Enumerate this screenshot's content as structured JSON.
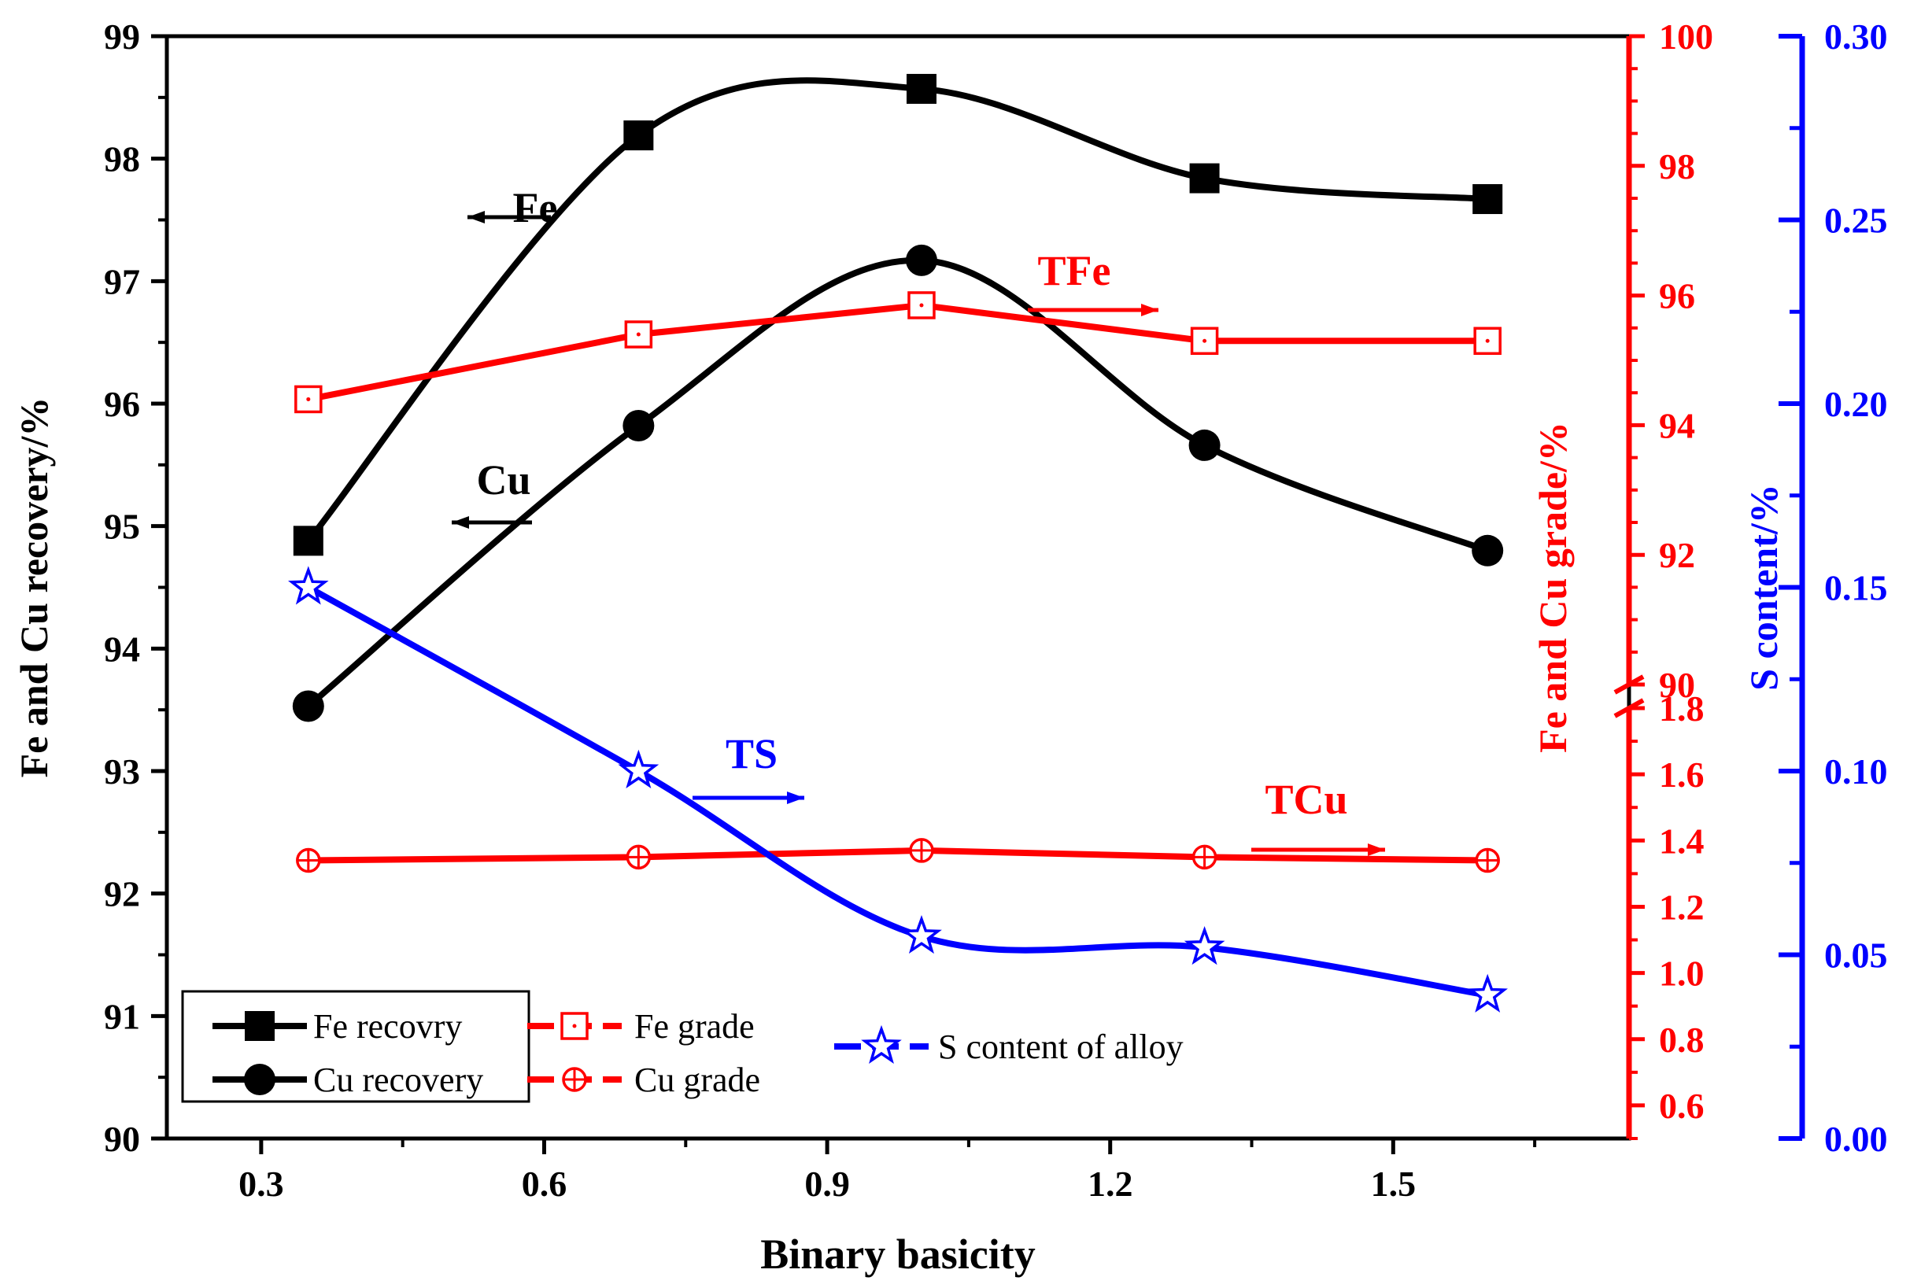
{
  "chart_data": {
    "type": "line",
    "title": "",
    "xlabel": "Binary basicity",
    "xlim": [
      0.2,
      1.75
    ],
    "xticks": [
      "0.3",
      "0.6",
      "0.9",
      "1.2",
      "1.5"
    ],
    "x": [
      0.35,
      0.7,
      1.0,
      1.3,
      1.6
    ],
    "axes": {
      "left": {
        "label": "Fe and Cu recovery/%",
        "ylim": [
          90,
          99
        ],
        "ticks": [
          "90",
          "91",
          "92",
          "93",
          "94",
          "95",
          "96",
          "97",
          "98",
          "99"
        ],
        "color": "#000000"
      },
      "right_grade_upper": {
        "label": "Fe and Cu grade/%",
        "ylim": [
          90,
          100
        ],
        "ticks": [
          "90",
          "92",
          "94",
          "96",
          "98",
          "100"
        ],
        "color": "#ff0000"
      },
      "right_grade_lower": {
        "ylim": [
          0.5,
          1.8
        ],
        "ticks": [
          "0.6",
          "0.8",
          "1.0",
          "1.2",
          "1.4",
          "1.6",
          "1.8"
        ],
        "color": "#ff0000"
      },
      "right_sulfur": {
        "label": "S content/%",
        "ylim": [
          0.0,
          0.3
        ],
        "ticks": [
          "0.00",
          "0.05",
          "0.10",
          "0.15",
          "0.20",
          "0.25",
          "0.30"
        ],
        "color": "#0000ff"
      }
    },
    "series": [
      {
        "name": "Fe recovry",
        "axis": "left",
        "marker": "square",
        "color": "#000000",
        "values": [
          94.88,
          98.19,
          98.57,
          97.84,
          97.67
        ]
      },
      {
        "name": "Cu recovery",
        "axis": "left",
        "marker": "circle",
        "color": "#000000",
        "values": [
          93.53,
          95.82,
          97.17,
          95.66,
          94.8
        ]
      },
      {
        "name": "Fe grade",
        "axis": "right_grade_upper",
        "marker": "open-square-dot",
        "color": "#ff0000",
        "values": [
          94.4,
          95.4,
          95.85,
          95.3,
          95.3
        ]
      },
      {
        "name": "Cu grade",
        "axis": "right_grade_lower",
        "marker": "open-circle-plus",
        "color": "#ff0000",
        "values": [
          1.34,
          1.35,
          1.37,
          1.35,
          1.34
        ]
      },
      {
        "name": "S content of alloy",
        "axis": "right_sulfur",
        "marker": "open-star",
        "color": "#0000ff",
        "values": [
          0.15,
          0.1,
          0.055,
          0.052,
          0.039
        ]
      }
    ],
    "annotations": [
      {
        "text": "Fe",
        "color": "#000000",
        "direction": "left"
      },
      {
        "text": "Cu",
        "color": "#000000",
        "direction": "left"
      },
      {
        "text": "TFe",
        "color": "#ff0000",
        "direction": "right"
      },
      {
        "text": "TS",
        "color": "#0000ff",
        "direction": "right"
      },
      {
        "text": "TCu",
        "color": "#ff0000",
        "direction": "right"
      }
    ],
    "legend": {
      "placement": "bottom-left"
    }
  }
}
